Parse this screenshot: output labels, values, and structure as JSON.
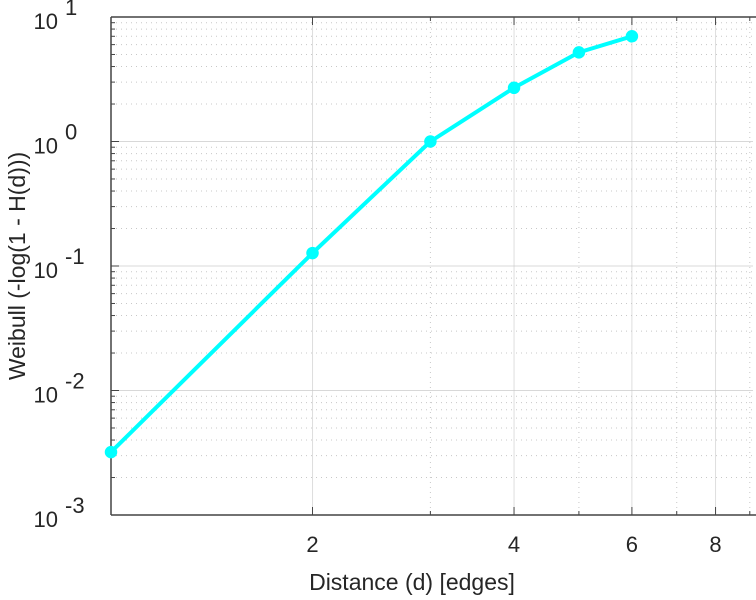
{
  "chart_data": {
    "type": "line",
    "title": "",
    "xlabel": "Distance (d) [edges]",
    "ylabel": "Weibull (-log(1 - H(d)))",
    "xscale": "log",
    "yscale": "log",
    "xlim": [
      1,
      9.1
    ],
    "ylim": [
      0.001,
      10
    ],
    "grid": true,
    "x_ticks": [
      2,
      4,
      6,
      8
    ],
    "x_tick_labels": [
      "2",
      "4",
      "6",
      "8"
    ],
    "y_ticks": [
      0.001,
      0.01,
      0.1,
      1,
      10
    ],
    "y_tick_labels": [
      {
        "base": "10",
        "exp": "-3"
      },
      {
        "base": "10",
        "exp": "-2"
      },
      {
        "base": "10",
        "exp": "-1"
      },
      {
        "base": "10",
        "exp": "0"
      },
      {
        "base": "10",
        "exp": "1"
      }
    ],
    "series": [
      {
        "name": "Weibull",
        "color": "#00FFFF",
        "x": [
          1,
          2,
          3,
          4,
          5,
          6
        ],
        "y": [
          0.0032,
          0.127,
          1.0,
          2.7,
          5.2,
          7.0
        ]
      }
    ]
  }
}
